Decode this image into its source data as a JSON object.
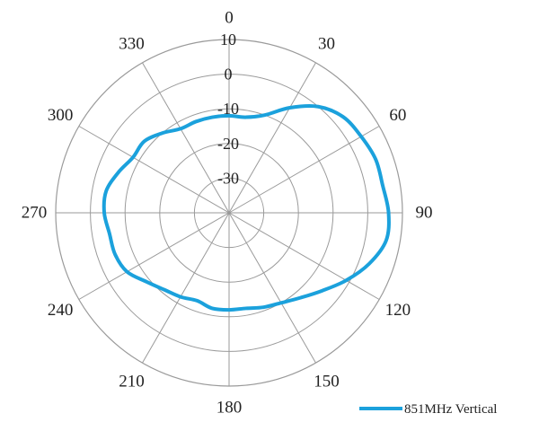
{
  "chart_data": {
    "type": "polar-line",
    "title": "",
    "angle_unit": "degrees",
    "angle_zero": "top",
    "angle_direction": "clockwise",
    "angular_ticks": [
      0,
      30,
      60,
      90,
      120,
      150,
      180,
      210,
      240,
      270,
      300,
      330
    ],
    "angular_tick_labels": [
      "0",
      "30",
      "60",
      "90",
      "120",
      "150",
      "180",
      "210",
      "240",
      "270",
      "300",
      "330"
    ],
    "radial_ticks": [
      -30,
      -20,
      -10,
      0,
      10
    ],
    "radial_tick_labels": [
      "-30",
      "-20",
      "-10",
      "0",
      "10"
    ],
    "radial_range": [
      -40,
      10
    ],
    "grid": true,
    "legend_position": "bottom-right",
    "colors": {
      "series": "#1ba1dc",
      "grid": "#9a9a9a"
    },
    "series": [
      {
        "name": "851MHz Vertical",
        "theta": [
          0,
          10,
          20,
          30,
          40,
          50,
          60,
          70,
          80,
          90,
          100,
          110,
          120,
          130,
          140,
          150,
          160,
          170,
          180,
          190,
          200,
          210,
          220,
          230,
          240,
          250,
          260,
          270,
          280,
          290,
          300,
          310,
          320,
          330,
          340,
          350
        ],
        "r": [
          -12,
          -12,
          -10,
          -5,
          0,
          3,
          4,
          5,
          5,
          6,
          6,
          3,
          -1,
          -5,
          -8,
          -10,
          -11,
          -12,
          -12,
          -12,
          -13,
          -12,
          -11,
          -9,
          -6,
          -5,
          -5,
          -4,
          -4,
          -6,
          -8,
          -8,
          -10,
          -12,
          -12,
          -12
        ]
      }
    ]
  }
}
